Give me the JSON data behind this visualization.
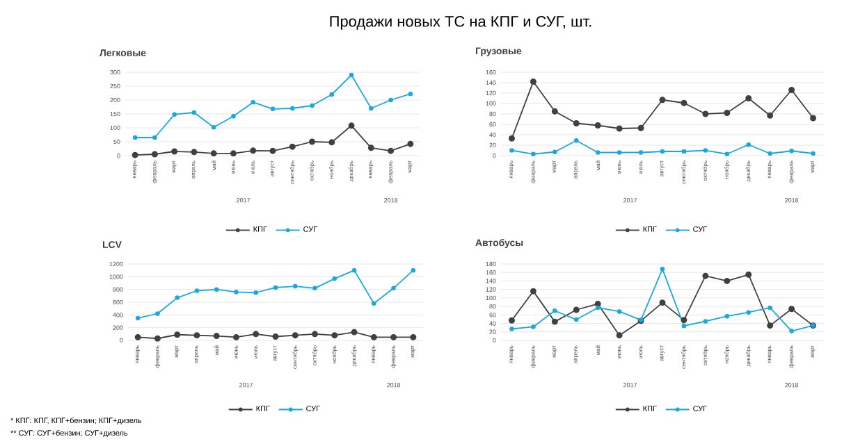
{
  "chart_data": [
    {
      "type": "other",
      "title": "Продажи новых ТС на КПГ и СУГ, шт.",
      "annotations": [
        "* КПГ: КПГ, КПГ+бензин; КПГ+дизель",
        "** СУГ: СУГ+бензин; СУГ+дизель"
      ]
    },
    {
      "type": "line",
      "title": "Легковые",
      "categories": [
        "январь",
        "февраль",
        "март",
        "апрель",
        "май",
        "июнь",
        "июль",
        "август",
        "сентябрь",
        "октябрь",
        "ноябрь",
        "декабрь",
        "январь",
        "февраль",
        "март"
      ],
      "annotations": [
        "2017",
        "2018"
      ],
      "ylim": [
        0,
        300
      ],
      "yticks": [
        0,
        50,
        100,
        150,
        200,
        250,
        300
      ],
      "grid": "y",
      "legend": "bottom",
      "marker": "circle",
      "line_style": "solid",
      "series": [
        {
          "name": "КПГ",
          "color": "#404040",
          "values": [
            2,
            5,
            15,
            13,
            8,
            8,
            18,
            17,
            32,
            50,
            48,
            108,
            28,
            17,
            42
          ]
        },
        {
          "name": "СУГ",
          "color": "#1ba8e0",
          "values": [
            65,
            65,
            148,
            155,
            102,
            142,
            192,
            168,
            170,
            180,
            220,
            290,
            170,
            200,
            222
          ]
        }
      ]
    },
    {
      "type": "line",
      "title": "Грузовые",
      "categories": [
        "январь",
        "февраль",
        "март",
        "апрель",
        "май",
        "июнь",
        "июль",
        "август",
        "сентябрь",
        "октябрь",
        "ноябрь",
        "декабрь",
        "январь",
        "февраль",
        "март"
      ],
      "annotations": [
        "2017",
        "2018"
      ],
      "ylim": [
        0,
        160
      ],
      "yticks": [
        0,
        20,
        40,
        60,
        80,
        100,
        120,
        140,
        160
      ],
      "grid": "y",
      "legend": "bottom",
      "marker": "circle",
      "line_style": "solid",
      "series": [
        {
          "name": "КПГ",
          "color": "#404040",
          "values": [
            33,
            142,
            85,
            62,
            58,
            52,
            53,
            107,
            101,
            80,
            82,
            110,
            77,
            126,
            72
          ]
        },
        {
          "name": "СУГ",
          "color": "#1ba8e0",
          "values": [
            10,
            3,
            7,
            29,
            6,
            6,
            6,
            8,
            8,
            10,
            3,
            21,
            4,
            9,
            4
          ]
        }
      ]
    },
    {
      "type": "line",
      "title": "LCV",
      "categories": [
        "январь",
        "февраль",
        "март",
        "апрель",
        "май",
        "июнь",
        "июль",
        "август",
        "сентябрь",
        "октябрь",
        "ноябрь",
        "декабрь",
        "январь",
        "февраль",
        "март"
      ],
      "annotations": [
        "2017",
        "2018"
      ],
      "ylim": [
        0,
        1200
      ],
      "yticks": [
        0,
        200,
        400,
        600,
        800,
        1000,
        1200
      ],
      "grid": "y",
      "legend": "bottom",
      "marker": "circle",
      "line_style": "solid",
      "series": [
        {
          "name": "КПГ",
          "color": "#404040",
          "values": [
            50,
            30,
            90,
            80,
            70,
            50,
            100,
            60,
            80,
            100,
            80,
            130,
            50,
            50,
            50
          ]
        },
        {
          "name": "СУГ",
          "color": "#1ba8e0",
          "values": [
            350,
            420,
            670,
            780,
            800,
            760,
            750,
            830,
            850,
            820,
            970,
            1100,
            580,
            820,
            1100
          ]
        }
      ]
    },
    {
      "type": "line",
      "title": "Автобусы",
      "categories": [
        "январь",
        "февраль",
        "март",
        "апрель",
        "май",
        "июнь",
        "июль",
        "август",
        "сентябрь",
        "октябрь",
        "ноябрь",
        "декабрь",
        "январь",
        "февраль",
        "март"
      ],
      "annotations": [
        "2017",
        "2018"
      ],
      "ylim": [
        0,
        180
      ],
      "yticks": [
        0,
        20,
        40,
        60,
        80,
        100,
        120,
        140,
        160,
        180
      ],
      "grid": "y",
      "legend": "bottom",
      "marker": "circle",
      "line_style": "solid",
      "series": [
        {
          "name": "КПГ",
          "color": "#404040",
          "values": [
            47,
            116,
            44,
            72,
            86,
            12,
            46,
            89,
            48,
            152,
            140,
            155,
            35,
            74,
            35
          ]
        },
        {
          "name": "СУГ",
          "color": "#1ba8e0",
          "values": [
            27,
            32,
            70,
            49,
            77,
            68,
            48,
            168,
            34,
            45,
            57,
            66,
            77,
            22,
            35
          ]
        }
      ]
    }
  ]
}
